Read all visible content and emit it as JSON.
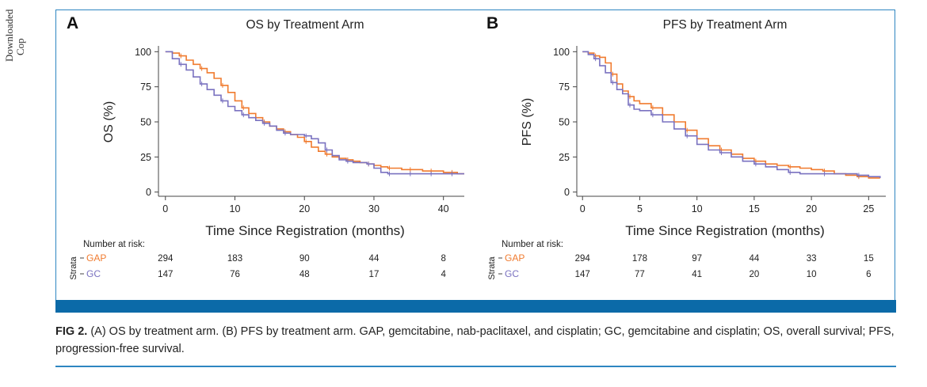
{
  "side_text": [
    "Downloaded",
    "Cop"
  ],
  "caption": {
    "label": "FIG 2.",
    "text": "(A) OS by treatment arm. (B) PFS by treatment arm. GAP, gemcitabine, nab-paclitaxel, and cisplatin; GC, gemcitabine and cisplatin; OS, overall survival; PFS, progression-free survival."
  },
  "colors": {
    "GAP": "#f07b2f",
    "GC": "#7a72c0",
    "frame": "#2e86c1",
    "band": "#0b6aa8"
  },
  "chart_data": [
    {
      "type": "line",
      "panel_label": "A",
      "title": "OS by Treatment Arm",
      "xlabel": "Time Since Registration (months)",
      "ylabel": "OS (%)",
      "xlim": [
        -1,
        43
      ],
      "ylim": [
        -3,
        103
      ],
      "xticks": [
        0,
        10,
        20,
        30,
        40
      ],
      "yticks": [
        0,
        25,
        50,
        75,
        100
      ],
      "series": [
        {
          "name": "GAP",
          "color": "#f07b2f",
          "x": [
            0,
            1,
            2,
            3,
            4,
            5,
            6,
            7,
            8,
            9,
            10,
            11,
            12,
            13,
            14,
            15,
            16,
            17,
            18,
            19,
            20,
            21,
            22,
            23,
            24,
            25,
            26,
            27,
            28,
            29,
            30,
            31,
            32,
            33,
            34,
            35,
            36,
            37,
            38,
            39,
            40,
            41,
            42,
            43
          ],
          "y": [
            100,
            99,
            97,
            94,
            91,
            88,
            85,
            81,
            76,
            71,
            65,
            60,
            56,
            53,
            50,
            47,
            45,
            43,
            41,
            39,
            36,
            32,
            29,
            27,
            25,
            24,
            23,
            22,
            21,
            20,
            19,
            18,
            17,
            17,
            16,
            16,
            16,
            15,
            15,
            15,
            14,
            14,
            13,
            13
          ]
        },
        {
          "name": "GC",
          "color": "#7a72c0",
          "x": [
            0,
            1,
            2,
            3,
            4,
            5,
            6,
            7,
            8,
            9,
            10,
            11,
            12,
            13,
            14,
            15,
            16,
            17,
            18,
            19,
            20,
            21,
            22,
            23,
            24,
            25,
            26,
            27,
            28,
            29,
            30,
            31,
            32,
            33,
            34,
            35,
            36,
            37,
            38,
            39,
            40,
            41,
            42,
            43
          ],
          "y": [
            100,
            95,
            91,
            87,
            82,
            77,
            73,
            69,
            65,
            61,
            58,
            55,
            53,
            51,
            49,
            47,
            44,
            42,
            41,
            41,
            40,
            38,
            35,
            30,
            26,
            23,
            22,
            21,
            21,
            20,
            17,
            14,
            13,
            13,
            13,
            13,
            13,
            13,
            13,
            13,
            13,
            13,
            13,
            13
          ]
        }
      ],
      "risk_table": {
        "heading": "Number at risk:",
        "strata_label": "Strata",
        "times": [
          0,
          10,
          20,
          30,
          40
        ],
        "rows": [
          {
            "name": "GAP",
            "values": [
              "294",
              "183",
              "90",
              "44",
              "8"
            ]
          },
          {
            "name": "GC",
            "values": [
              "147",
              "76",
              "48",
              "17",
              "4"
            ]
          }
        ]
      }
    },
    {
      "type": "line",
      "panel_label": "B",
      "title": "PFS by Treatment Arm",
      "xlabel": "Time Since Registration (months)",
      "ylabel": "PFS (%)",
      "xlim": [
        -0.5,
        26.5
      ],
      "ylim": [
        -3,
        103
      ],
      "xticks": [
        0,
        5,
        10,
        15,
        20,
        25
      ],
      "yticks": [
        0,
        25,
        50,
        75,
        100
      ],
      "series": [
        {
          "name": "GAP",
          "color": "#f07b2f",
          "x": [
            0,
            0.5,
            1,
            1.5,
            2,
            2.5,
            3,
            3.5,
            4,
            4.5,
            5,
            6,
            7,
            8,
            9,
            10,
            11,
            12,
            13,
            14,
            15,
            16,
            17,
            18,
            19,
            20,
            21,
            22,
            23,
            24,
            25,
            26
          ],
          "y": [
            100,
            99,
            97,
            96,
            92,
            84,
            77,
            72,
            68,
            65,
            63,
            60,
            55,
            50,
            44,
            38,
            33,
            30,
            27,
            24,
            22,
            20,
            19,
            18,
            17,
            16,
            15,
            13,
            12,
            11,
            10,
            10
          ]
        },
        {
          "name": "GC",
          "color": "#7a72c0",
          "x": [
            0,
            0.5,
            1,
            1.5,
            2,
            2.5,
            3,
            3.5,
            4,
            4.5,
            5,
            6,
            7,
            8,
            9,
            10,
            11,
            12,
            13,
            14,
            15,
            16,
            17,
            18,
            19,
            20,
            21,
            22,
            23,
            24,
            25,
            26
          ],
          "y": [
            100,
            98,
            95,
            90,
            85,
            78,
            73,
            70,
            62,
            59,
            58,
            55,
            50,
            45,
            40,
            34,
            30,
            28,
            25,
            22,
            20,
            18,
            16,
            14,
            13,
            13,
            13,
            13,
            13,
            12,
            11,
            10
          ]
        }
      ],
      "risk_table": {
        "heading": "Number at risk:",
        "strata_label": "Strata",
        "times": [
          0,
          5,
          10,
          15,
          20,
          25
        ],
        "rows": [
          {
            "name": "GAP",
            "values": [
              "294",
              "178",
              "97",
              "44",
              "33",
              "15"
            ]
          },
          {
            "name": "GC",
            "values": [
              "147",
              "77",
              "41",
              "20",
              "10",
              "6"
            ]
          }
        ]
      }
    }
  ]
}
